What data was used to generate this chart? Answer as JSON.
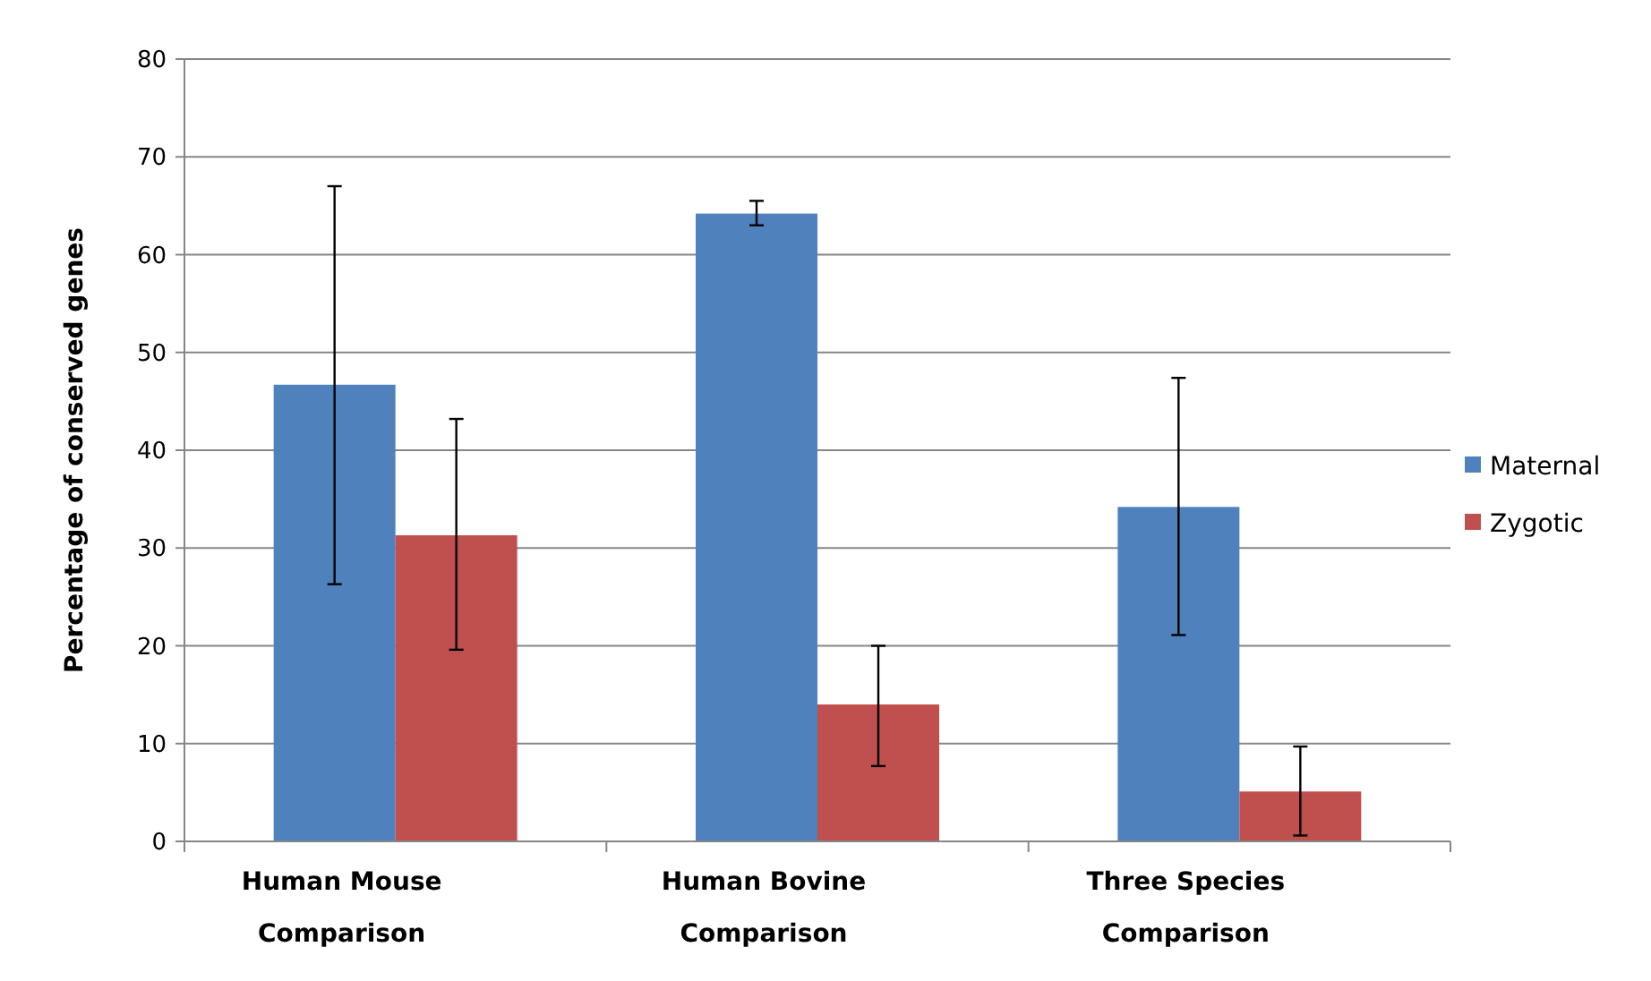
{
  "chart_data": {
    "type": "bar",
    "ylabel": "Percentage of conserved genes",
    "categories": [
      "Human Mouse Comparison",
      "Human Bovine Comparison",
      "Three Species Comparison"
    ],
    "series": [
      {
        "name": "Maternal",
        "color": "#4f81bd",
        "values": [
          46.7,
          64.2,
          34.2
        ],
        "errors": [
          [
            26.3,
            67.0
          ],
          [
            63.0,
            65.5
          ],
          [
            21.1,
            47.4
          ]
        ]
      },
      {
        "name": "Zygotic",
        "color": "#c0504d",
        "values": [
          31.3,
          14.0,
          5.1
        ],
        "errors": [
          [
            19.6,
            43.2
          ],
          [
            7.7,
            20.0
          ],
          [
            0.6,
            9.7
          ]
        ]
      }
    ],
    "ylim": [
      0,
      80
    ],
    "yticks": [
      0,
      10,
      20,
      30,
      40,
      50,
      60,
      70,
      80
    ],
    "grid": "y",
    "legend": "right"
  }
}
